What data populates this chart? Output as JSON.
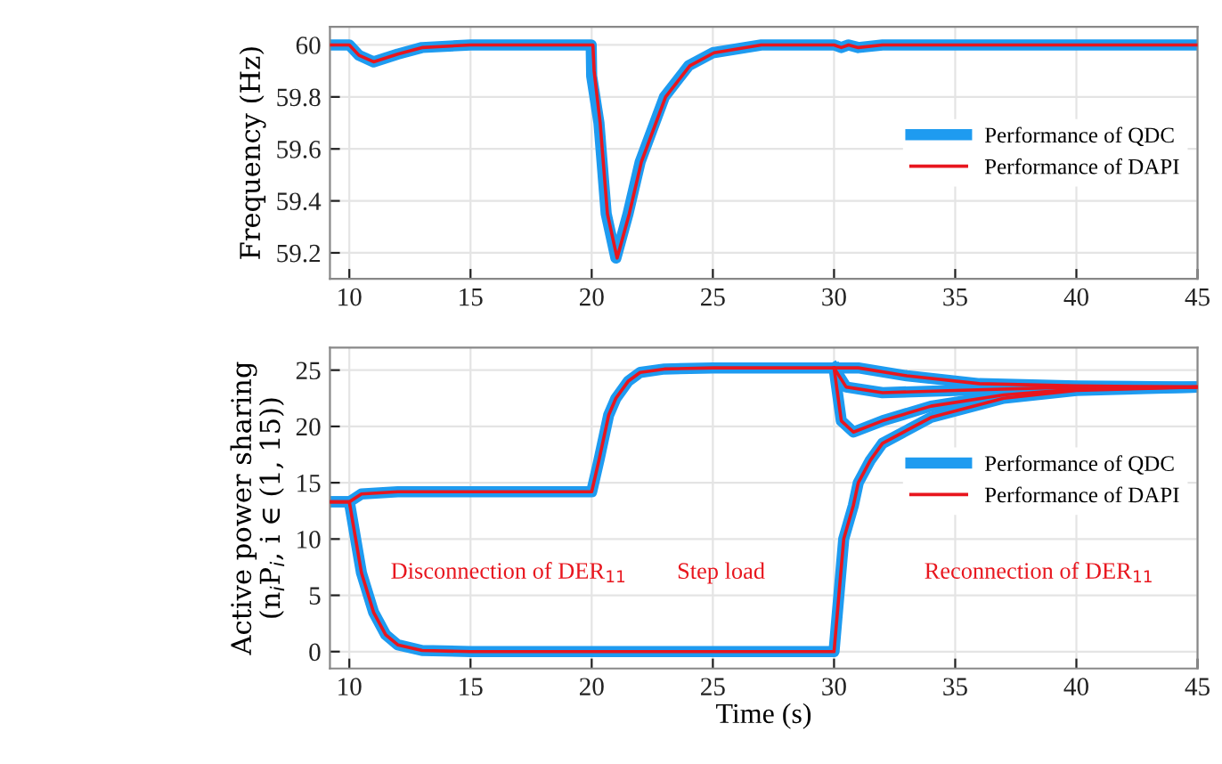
{
  "chart_data": [
    {
      "type": "line",
      "ylabel": "Frequency (Hz)",
      "xlim": [
        9.2,
        45
      ],
      "xticks": [
        10,
        15,
        20,
        25,
        30,
        35,
        40,
        45
      ],
      "ylim": [
        59.1,
        60.07
      ],
      "yticks": [
        59.2,
        59.4,
        59.6,
        59.8,
        60
      ],
      "grid": true,
      "legend": "right",
      "line_style": "solid",
      "marker": "none",
      "series": [
        {
          "name": "Performance of QDC",
          "color": "#1e9bf0",
          "x": [
            9.2,
            10,
            10.4,
            11,
            12,
            13,
            15,
            19.98,
            20,
            20.3,
            20.6,
            21,
            21.5,
            22,
            23,
            24,
            25,
            27,
            30,
            30.3,
            30.6,
            31,
            32,
            45
          ],
          "values": [
            60,
            60,
            59.96,
            59.935,
            59.965,
            59.99,
            60,
            60,
            59.88,
            59.7,
            59.35,
            59.18,
            59.35,
            59.55,
            59.8,
            59.92,
            59.97,
            60,
            60,
            59.99,
            60,
            59.99,
            60,
            60
          ]
        },
        {
          "name": "Performance of DAPI",
          "color": "#e8161e",
          "x": [
            9.2,
            10,
            10.4,
            11,
            12,
            13,
            15,
            20.05,
            20.1,
            20.35,
            20.65,
            21.05,
            21.55,
            22.05,
            23.05,
            24.05,
            25.05,
            27,
            30,
            30.3,
            30.6,
            31,
            32,
            45
          ],
          "values": [
            60,
            60,
            59.96,
            59.935,
            59.965,
            59.99,
            60,
            60,
            59.9,
            59.7,
            59.35,
            59.18,
            59.35,
            59.55,
            59.8,
            59.92,
            59.97,
            60,
            60,
            59.99,
            60,
            59.99,
            60,
            60
          ]
        }
      ]
    },
    {
      "type": "line",
      "xlabel": "Time (s)",
      "ylabel": "Active power sharing\n(n$_{i}$P$_{i}$, i ∈ (1, 15))",
      "xlim": [
        9.2,
        45
      ],
      "xticks": [
        10,
        15,
        20,
        25,
        30,
        35,
        40,
        45
      ],
      "ylim": [
        -1.5,
        27
      ],
      "yticks": [
        0,
        5,
        10,
        15,
        20,
        25
      ],
      "grid": true,
      "legend": "right",
      "line_style": "solid",
      "marker": "none",
      "annotations": [
        "Disconnection of DER$_{11}$",
        "Step load",
        "Reconnection of DER$_{11}$"
      ],
      "series": [
        {
          "name": "Performance of QDC",
          "color": "#1e9bf0",
          "x": [
            9.2,
            10,
            10.5,
            12,
            20,
            20.3,
            20.7,
            21,
            21.5,
            22,
            23,
            25,
            30,
            31,
            33,
            36,
            40,
            45
          ],
          "values": [
            13.3,
            13.3,
            14,
            14.2,
            14.2,
            17,
            21,
            22.5,
            24,
            24.8,
            25.1,
            25.2,
            25.2,
            25.2,
            24.5,
            23.8,
            23.6,
            23.5
          ]
        },
        {
          "name": "Performance of DAPI",
          "color": "#e8161e",
          "x": [
            9.2,
            10,
            10.5,
            12,
            20,
            20.3,
            20.7,
            21,
            21.5,
            22,
            23,
            25,
            30,
            31,
            33,
            36,
            40,
            45
          ],
          "values": [
            13.3,
            13.3,
            14,
            14.2,
            14.2,
            17,
            21,
            22.5,
            24,
            24.8,
            25.1,
            25.2,
            25.2,
            25.2,
            24.5,
            23.8,
            23.6,
            23.5
          ]
        },
        {
          "color": "#1e9bf0",
          "x": [
            30,
            30.5,
            32,
            35,
            40,
            45
          ],
          "values": [
            25.2,
            23.5,
            23,
            23.2,
            23.5,
            23.5
          ]
        },
        {
          "color": "#e8161e",
          "x": [
            30,
            30.5,
            32,
            35,
            40,
            45
          ],
          "values": [
            25.2,
            23.5,
            23,
            23.2,
            23.5,
            23.5
          ]
        },
        {
          "color": "#1e9bf0",
          "x": [
            30,
            30.3,
            30.8,
            32,
            34,
            37,
            40,
            45
          ],
          "values": [
            25.2,
            20.5,
            19.5,
            20.5,
            21.8,
            22.8,
            23.3,
            23.5
          ]
        },
        {
          "color": "#e8161e",
          "x": [
            30,
            30.3,
            30.8,
            32,
            34,
            37,
            40,
            45
          ],
          "values": [
            25.2,
            20.5,
            19.5,
            20.5,
            21.8,
            22.8,
            23.3,
            23.5
          ]
        },
        {
          "color": "#1e9bf0",
          "x": [
            9.2,
            10,
            10.5,
            11,
            11.5,
            12,
            13,
            15,
            30,
            30.2,
            30.4,
            30.8,
            31,
            31.5,
            32,
            34,
            37,
            40,
            45
          ],
          "values": [
            13.3,
            13.3,
            7,
            3.5,
            1.5,
            0.6,
            0.1,
            0,
            0,
            5,
            10,
            13,
            15,
            17,
            18.5,
            20.8,
            22.5,
            23.2,
            23.5
          ]
        },
        {
          "color": "#e8161e",
          "x": [
            9.2,
            10,
            10.5,
            11,
            11.5,
            12,
            13,
            15,
            30,
            30.2,
            30.4,
            30.8,
            31,
            31.5,
            32,
            34,
            37,
            40,
            45
          ],
          "values": [
            13.3,
            13.3,
            7,
            3.5,
            1.5,
            0.6,
            0.1,
            0,
            0,
            5,
            10,
            13,
            15,
            17,
            18.5,
            20.8,
            22.5,
            23.2,
            23.5
          ]
        }
      ]
    }
  ]
}
